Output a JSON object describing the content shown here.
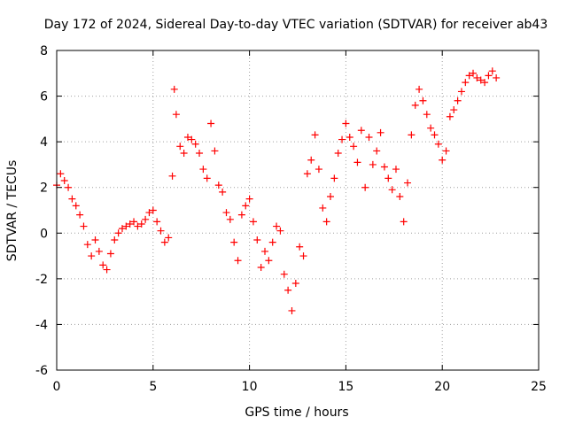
{
  "chart_data": {
    "type": "scatter",
    "title": "Day 172 of 2024, Sidereal Day-to-day VTEC variation (SDTVAR) for receiver ab43",
    "xlabel": "GPS time / hours",
    "ylabel": "SDTVAR / TECUs",
    "xlim": [
      0,
      25
    ],
    "ylim": [
      -6,
      8
    ],
    "xticks": [
      0,
      5,
      10,
      15,
      20,
      25
    ],
    "yticks": [
      -6,
      -4,
      -2,
      0,
      2,
      4,
      6,
      8
    ],
    "xtick_labels": [
      "0",
      "5",
      "10",
      "15",
      "20",
      "25"
    ],
    "ytick_labels": [
      "-6",
      "-4",
      "-2",
      "0",
      "2",
      "4",
      "6",
      "8"
    ],
    "grid": true,
    "marker": "+",
    "series": [
      {
        "name": "SDTVAR",
        "color": "#ff0000",
        "x": [
          0.0,
          0.2,
          0.4,
          0.6,
          0.8,
          1.0,
          1.2,
          1.4,
          1.6,
          1.8,
          2.0,
          2.2,
          2.4,
          2.6,
          2.8,
          3.0,
          3.2,
          3.4,
          3.6,
          3.8,
          4.0,
          4.2,
          4.4,
          4.6,
          4.8,
          5.0,
          5.2,
          5.4,
          5.6,
          5.8,
          6.0,
          6.1,
          6.2,
          6.4,
          6.6,
          6.8,
          7.0,
          7.2,
          7.4,
          7.6,
          7.8,
          8.0,
          8.2,
          8.4,
          8.6,
          8.8,
          9.0,
          9.2,
          9.4,
          9.6,
          9.8,
          10.0,
          10.2,
          10.4,
          10.6,
          10.8,
          11.0,
          11.2,
          11.4,
          11.6,
          11.8,
          12.0,
          12.2,
          12.4,
          12.6,
          12.8,
          13.0,
          13.2,
          13.4,
          13.6,
          13.8,
          14.0,
          14.2,
          14.4,
          14.6,
          14.8,
          15.0,
          15.2,
          15.4,
          15.6,
          15.8,
          16.0,
          16.2,
          16.4,
          16.6,
          16.8,
          17.0,
          17.2,
          17.4,
          17.6,
          17.8,
          18.0,
          18.2,
          18.4,
          18.6,
          18.8,
          19.0,
          19.2,
          19.4,
          19.6,
          19.8,
          20.0,
          20.2,
          20.4,
          20.6,
          20.8,
          21.0,
          21.2,
          21.4,
          21.6,
          21.8,
          22.0,
          22.2,
          22.4,
          22.6,
          22.8
        ],
        "y": [
          2.1,
          2.6,
          2.3,
          2.0,
          1.5,
          1.2,
          0.8,
          0.3,
          -0.5,
          -1.0,
          -0.3,
          -0.8,
          -1.4,
          -1.6,
          -0.9,
          -0.3,
          0.0,
          0.2,
          0.3,
          0.4,
          0.5,
          0.3,
          0.4,
          0.6,
          0.9,
          1.0,
          0.5,
          0.1,
          -0.4,
          -0.2,
          2.5,
          6.3,
          5.2,
          3.8,
          3.5,
          4.2,
          4.1,
          3.9,
          3.5,
          2.8,
          2.4,
          4.8,
          3.6,
          2.1,
          1.8,
          0.9,
          0.6,
          -0.4,
          -1.2,
          0.8,
          1.2,
          1.5,
          0.5,
          -0.3,
          -1.5,
          -0.8,
          -1.2,
          -0.4,
          0.3,
          0.1,
          -1.8,
          -2.5,
          -3.4,
          -2.2,
          -0.6,
          -1.0,
          2.6,
          3.2,
          4.3,
          2.8,
          1.1,
          0.5,
          1.6,
          2.4,
          3.5,
          4.1,
          4.8,
          4.2,
          3.8,
          3.1,
          4.5,
          2.0,
          4.2,
          3.0,
          3.6,
          4.4,
          2.9,
          2.4,
          1.9,
          2.8,
          1.6,
          0.5,
          2.2,
          4.3,
          5.6,
          6.3,
          5.8,
          5.2,
          4.6,
          4.3,
          3.9,
          3.2,
          3.6,
          5.1,
          5.4,
          5.8,
          6.2,
          6.6,
          6.9,
          7.0,
          6.8,
          6.7,
          6.6,
          6.9,
          7.1,
          6.8
        ]
      }
    ]
  }
}
